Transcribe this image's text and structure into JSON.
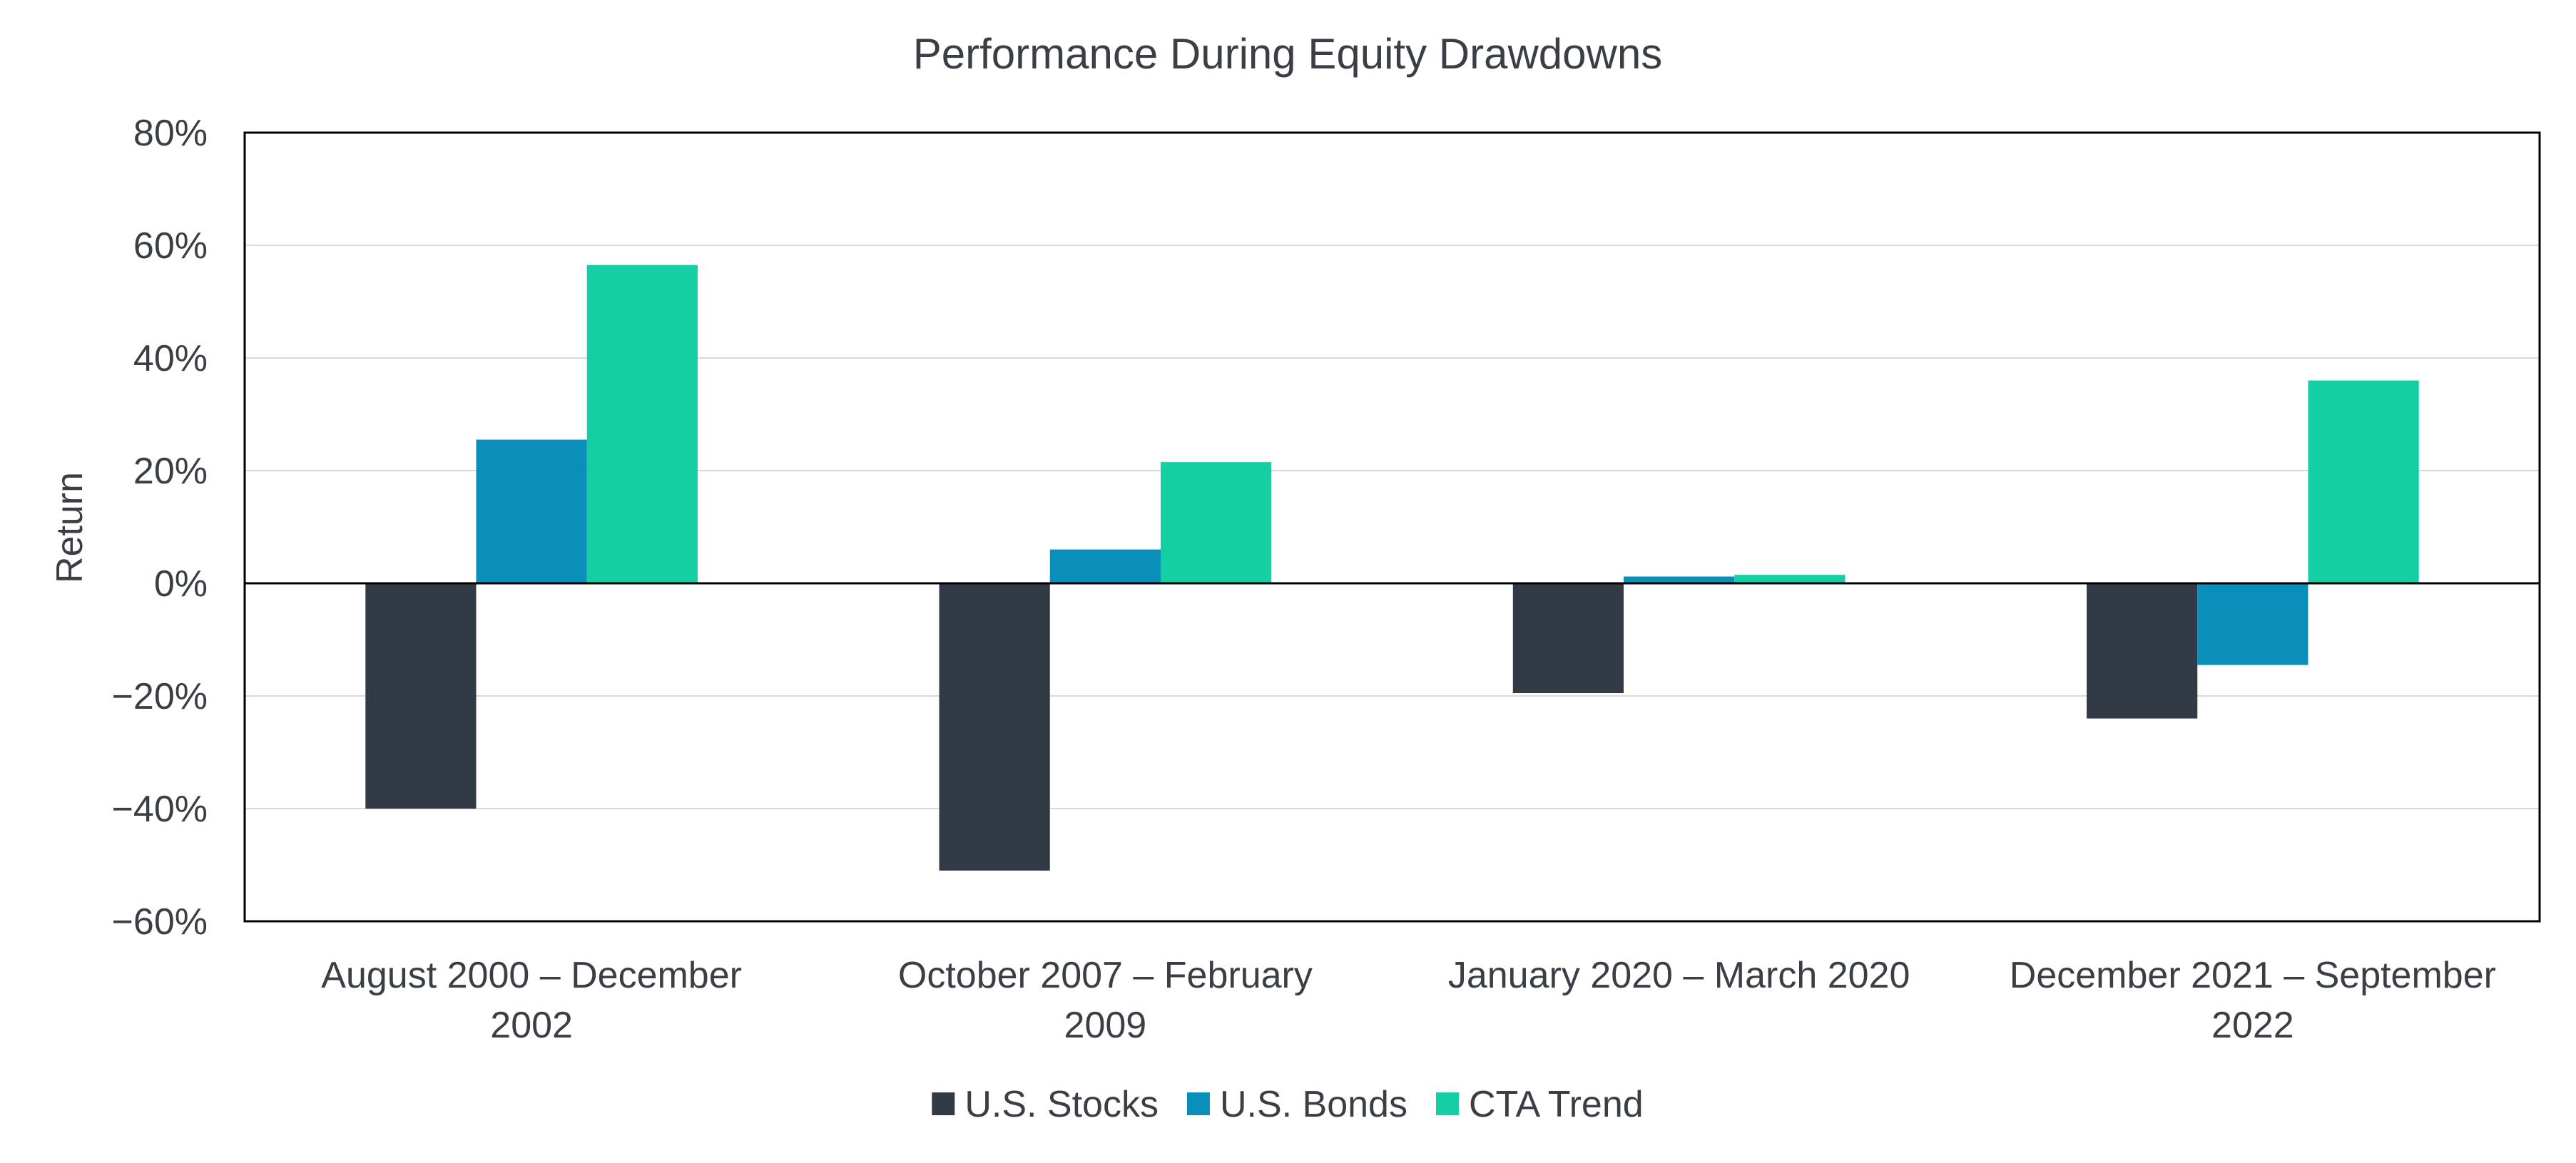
{
  "chart_data": {
    "type": "bar",
    "title": "Performance During Equity Drawdowns",
    "xlabel": "",
    "ylabel": "Return",
    "ylim": [
      -60,
      80
    ],
    "ytick_step": 20,
    "ytick_labels": [
      "80%",
      "60%",
      "40%",
      "20%",
      "0%",
      "−20%",
      "−40%",
      "−60%"
    ],
    "grid": true,
    "legend_position": "bottom",
    "categories": [
      [
        "August 2000 – December",
        "2002"
      ],
      [
        "October 2007 – February",
        "2009"
      ],
      [
        "January 2020 – March 2020"
      ],
      [
        "December 2021 – September",
        "2022"
      ]
    ],
    "series": [
      {
        "name": "U.S. Stocks",
        "color": "#323a46",
        "values": [
          -40.0,
          -51.0,
          -19.5,
          -24.0
        ]
      },
      {
        "name": "U.S. Bonds",
        "color": "#0a8fbb",
        "values": [
          25.5,
          6.0,
          1.2,
          -14.5
        ]
      },
      {
        "name": "CTA Trend",
        "color": "#14cfa3",
        "values": [
          56.5,
          21.5,
          1.5,
          36.0
        ]
      }
    ]
  }
}
